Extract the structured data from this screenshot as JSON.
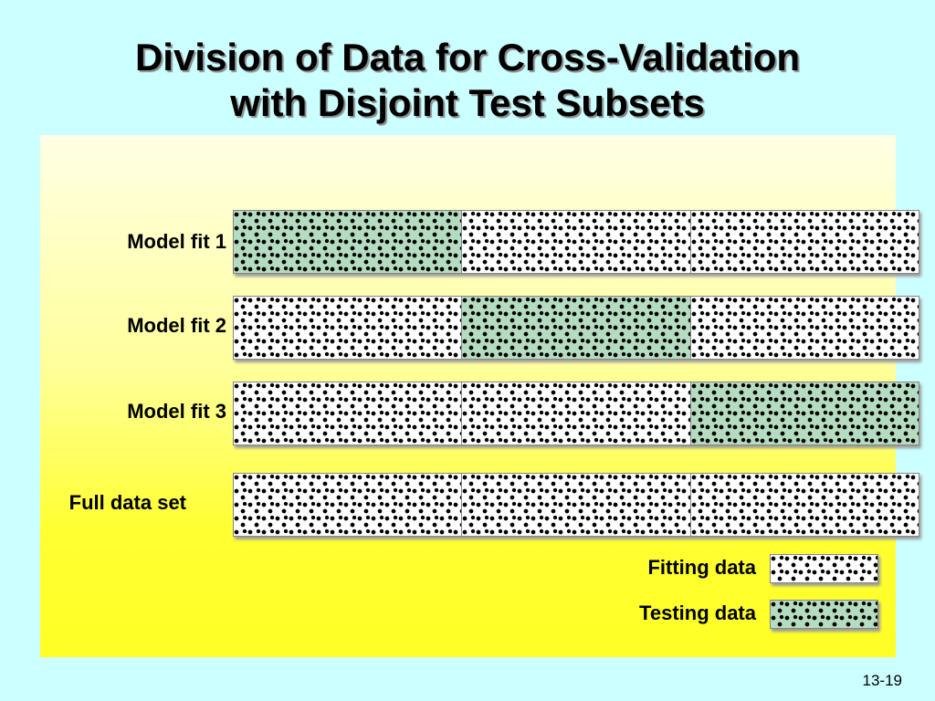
{
  "slide": {
    "title_line1": "Division of Data for Cross-Validation",
    "title_line2": "with Disjoint Test Subsets",
    "page_number": "13-19"
  },
  "rows": [
    {
      "label": "Model fit 1",
      "segments": [
        "testing",
        "fitting",
        "fitting"
      ]
    },
    {
      "label": "Model fit 2",
      "segments": [
        "fitting",
        "testing",
        "fitting"
      ]
    },
    {
      "label": "Model fit 3",
      "segments": [
        "fitting",
        "fitting",
        "testing"
      ]
    },
    {
      "label": "Full data set",
      "segments": [
        "fitting",
        "fitting",
        "fitting"
      ]
    }
  ],
  "legend": {
    "fitting_label": "Fitting data",
    "testing_label": "Testing data"
  },
  "colors": {
    "background": "#ccffff",
    "fitting_fill": "#ffffff",
    "testing_fill": "#b4dcc0",
    "panel_top": "#ffffe6",
    "panel_bottom": "#ffff26"
  }
}
